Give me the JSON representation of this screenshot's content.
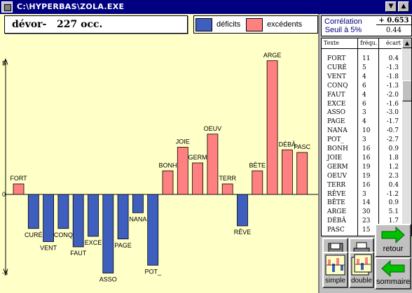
{
  "window": {
    "title": "C:\\HYPERBAS\\ZOLA.EXE",
    "min_glyph": "▼",
    "max_glyph": "▲"
  },
  "header": {
    "word": "dévor-",
    "count": "227 occ."
  },
  "legend": {
    "deficits_label": "déficits",
    "excedents_label": "excédents",
    "deficit_color": "#3f5fbf",
    "excedent_color": "#ff8080"
  },
  "correlation": {
    "label_line1": "Corrélation",
    "label_line2": "Seuil à 5%",
    "value": "+ 0.653",
    "threshold": "0.44"
  },
  "table": {
    "headers": [
      "Texte",
      "fréqu.",
      "écart"
    ],
    "rows": [
      [
        "FORT",
        "11",
        "0.4"
      ],
      [
        "CURÉ",
        "5",
        "-1.3"
      ],
      [
        "VENT",
        "4",
        "-1.8"
      ],
      [
        "CONQ",
        "6",
        "-1.3"
      ],
      [
        "FAUT",
        "4",
        "-2.0"
      ],
      [
        "EXCE",
        "6",
        "-1.6"
      ],
      [
        "ASSO",
        "3",
        "-3.0"
      ],
      [
        "PAGE",
        "4",
        "-1.7"
      ],
      [
        "NANA",
        "10",
        "-0.7"
      ],
      [
        "POT_",
        "3",
        "-2.7"
      ],
      [
        "BONH",
        "16",
        "0.9"
      ],
      [
        "JOIE",
        "16",
        "1.8"
      ],
      [
        "GERM",
        "19",
        "1.2"
      ],
      [
        "OEUV",
        "19",
        "2.3"
      ],
      [
        "TERR",
        "16",
        "0.4"
      ],
      [
        "RÊVE",
        "3",
        "-1.2"
      ],
      [
        "BÊTE",
        "14",
        "0.9"
      ],
      [
        "ARGE",
        "30",
        "5.1"
      ],
      [
        "DÉBÂ",
        "23",
        "1.7"
      ],
      [
        "PASC",
        "15",
        "1.6"
      ]
    ]
  },
  "buttons": {
    "simple": "simple",
    "double": "double",
    "retour": "retour",
    "sommaire": "sommaire"
  },
  "chart_data": {
    "type": "bar",
    "categories": [
      "FORT",
      "CURÉ",
      "VENT",
      "CONQ",
      "FAUT",
      "EXCE",
      "ASSO",
      "PAGE",
      "NANA",
      "POT_",
      "BONH",
      "JOIE",
      "GERM",
      "OEUV",
      "TERR",
      "RÊVE",
      "BÊTE",
      "ARGE",
      "DÉBÂ",
      "PASC"
    ],
    "values": [
      0.4,
      -1.3,
      -1.8,
      -1.3,
      -2.0,
      -1.6,
      -3.0,
      -1.7,
      -0.7,
      -2.7,
      0.9,
      1.8,
      1.2,
      2.3,
      0.4,
      -1.2,
      0.9,
      5.1,
      1.7,
      1.6
    ],
    "ylim": [
      -3,
      5
    ],
    "yticks": [
      "5",
      "0",
      "-3"
    ],
    "grid": false
  }
}
